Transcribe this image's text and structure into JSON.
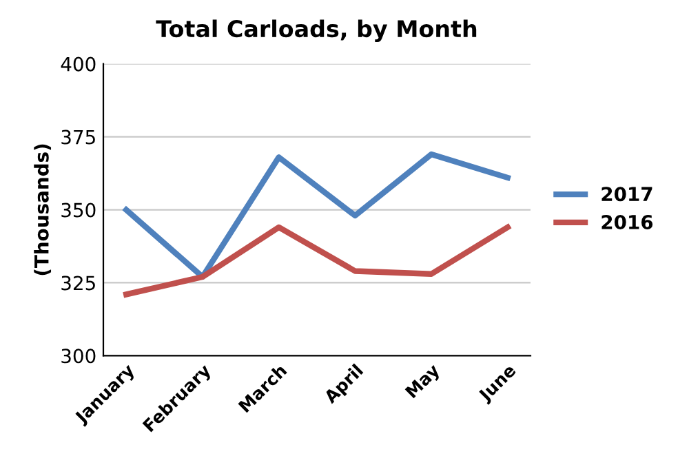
{
  "chart_data": {
    "type": "line",
    "title": "Total Carloads, by Month",
    "ylabel": "(Thousands)",
    "categories": [
      "January",
      "February",
      "March",
      "April",
      "May",
      "June"
    ],
    "series": [
      {
        "name": "2017",
        "color": "#4f81bd",
        "values": [
          350,
          327,
          368,
          348,
          369,
          361
        ]
      },
      {
        "name": "2016",
        "color": "#c0504d",
        "values": [
          321,
          327,
          344,
          329,
          328,
          344
        ]
      }
    ],
    "ylim": [
      300,
      400
    ],
    "yticks": [
      300,
      325,
      350,
      375,
      400
    ],
    "grid": "y",
    "legend": "right",
    "marker": "none",
    "line_style": "solid"
  }
}
